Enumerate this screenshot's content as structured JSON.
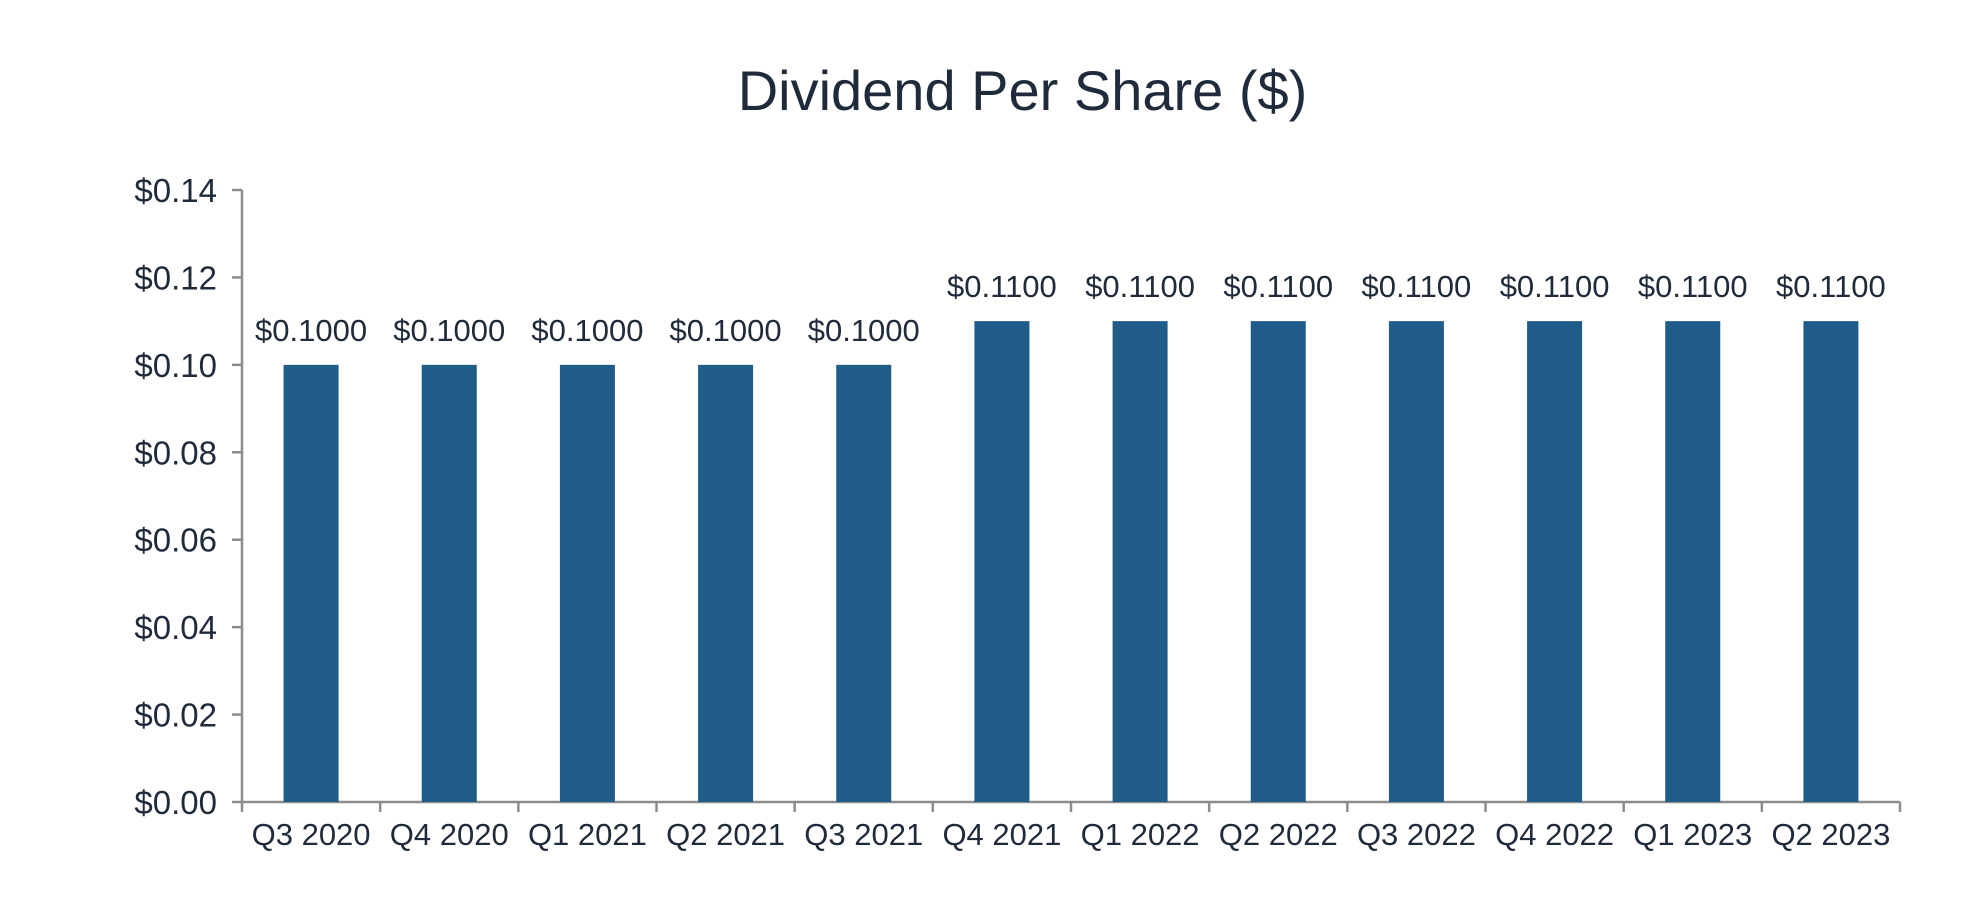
{
  "chart_data": {
    "type": "bar",
    "title": "Dividend Per Share ($)",
    "xlabel": "",
    "ylabel": "",
    "categories": [
      "Q3 2020",
      "Q4 2020",
      "Q1 2021",
      "Q2 2021",
      "Q3 2021",
      "Q4 2021",
      "Q1 2022",
      "Q2 2022",
      "Q3 2022",
      "Q4 2022",
      "Q1 2023",
      "Q2 2023"
    ],
    "values": [
      0.1,
      0.1,
      0.1,
      0.1,
      0.1,
      0.11,
      0.11,
      0.11,
      0.11,
      0.11,
      0.11,
      0.11
    ],
    "data_labels": [
      "$0.1000",
      "$0.1000",
      "$0.1000",
      "$0.1000",
      "$0.1000",
      "$0.1100",
      "$0.1100",
      "$0.1100",
      "$0.1100",
      "$0.1100",
      "$0.1100",
      "$0.1100"
    ],
    "ylim": [
      0,
      0.14
    ],
    "yticks": [
      0,
      0.02,
      0.04,
      0.06,
      0.08,
      0.1,
      0.12,
      0.14
    ],
    "ytick_labels": [
      "$0.00",
      "$0.02",
      "$0.04",
      "$0.06",
      "$0.08",
      "$0.10",
      "$0.12",
      "$0.14"
    ],
    "grid": false,
    "legend": "none",
    "colors": {
      "bar": "#1f5c87",
      "axis": "#8c8c8c",
      "text": "#1f2b3a"
    }
  }
}
